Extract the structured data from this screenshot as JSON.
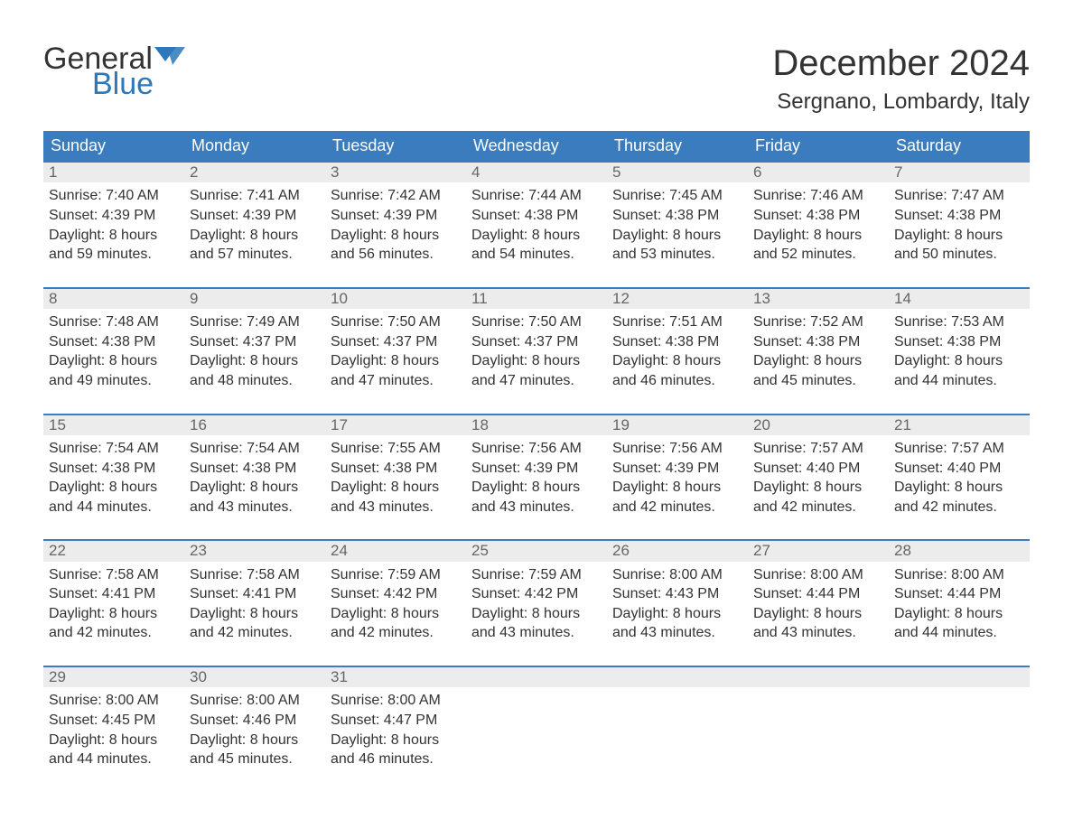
{
  "brand": {
    "word1": "General",
    "word2": "Blue",
    "word1_color": "#333333",
    "word2_color": "#2e77b8",
    "flag_color": "#2e77b8"
  },
  "title": "December 2024",
  "location": "Sergnano, Lombardy, Italy",
  "colors": {
    "header_bg": "#3a7cbd",
    "header_text": "#ffffff",
    "daynum_bg": "#ececec",
    "daynum_text": "#666666",
    "cell_border": "#3a7cbd",
    "body_text": "#333333",
    "page_bg": "#ffffff"
  },
  "typography": {
    "title_fontsize": 40,
    "location_fontsize": 24,
    "header_fontsize": 18,
    "daynum_fontsize": 17,
    "body_fontsize": 16,
    "font_family": "Arial"
  },
  "day_headers": [
    "Sunday",
    "Monday",
    "Tuesday",
    "Wednesday",
    "Thursday",
    "Friday",
    "Saturday"
  ],
  "weeks": [
    [
      {
        "num": "1",
        "sunrise": "Sunrise: 7:40 AM",
        "sunset": "Sunset: 4:39 PM",
        "dl1": "Daylight: 8 hours",
        "dl2": "and 59 minutes."
      },
      {
        "num": "2",
        "sunrise": "Sunrise: 7:41 AM",
        "sunset": "Sunset: 4:39 PM",
        "dl1": "Daylight: 8 hours",
        "dl2": "and 57 minutes."
      },
      {
        "num": "3",
        "sunrise": "Sunrise: 7:42 AM",
        "sunset": "Sunset: 4:39 PM",
        "dl1": "Daylight: 8 hours",
        "dl2": "and 56 minutes."
      },
      {
        "num": "4",
        "sunrise": "Sunrise: 7:44 AM",
        "sunset": "Sunset: 4:38 PM",
        "dl1": "Daylight: 8 hours",
        "dl2": "and 54 minutes."
      },
      {
        "num": "5",
        "sunrise": "Sunrise: 7:45 AM",
        "sunset": "Sunset: 4:38 PM",
        "dl1": "Daylight: 8 hours",
        "dl2": "and 53 minutes."
      },
      {
        "num": "6",
        "sunrise": "Sunrise: 7:46 AM",
        "sunset": "Sunset: 4:38 PM",
        "dl1": "Daylight: 8 hours",
        "dl2": "and 52 minutes."
      },
      {
        "num": "7",
        "sunrise": "Sunrise: 7:47 AM",
        "sunset": "Sunset: 4:38 PM",
        "dl1": "Daylight: 8 hours",
        "dl2": "and 50 minutes."
      }
    ],
    [
      {
        "num": "8",
        "sunrise": "Sunrise: 7:48 AM",
        "sunset": "Sunset: 4:38 PM",
        "dl1": "Daylight: 8 hours",
        "dl2": "and 49 minutes."
      },
      {
        "num": "9",
        "sunrise": "Sunrise: 7:49 AM",
        "sunset": "Sunset: 4:37 PM",
        "dl1": "Daylight: 8 hours",
        "dl2": "and 48 minutes."
      },
      {
        "num": "10",
        "sunrise": "Sunrise: 7:50 AM",
        "sunset": "Sunset: 4:37 PM",
        "dl1": "Daylight: 8 hours",
        "dl2": "and 47 minutes."
      },
      {
        "num": "11",
        "sunrise": "Sunrise: 7:50 AM",
        "sunset": "Sunset: 4:37 PM",
        "dl1": "Daylight: 8 hours",
        "dl2": "and 47 minutes."
      },
      {
        "num": "12",
        "sunrise": "Sunrise: 7:51 AM",
        "sunset": "Sunset: 4:38 PM",
        "dl1": "Daylight: 8 hours",
        "dl2": "and 46 minutes."
      },
      {
        "num": "13",
        "sunrise": "Sunrise: 7:52 AM",
        "sunset": "Sunset: 4:38 PM",
        "dl1": "Daylight: 8 hours",
        "dl2": "and 45 minutes."
      },
      {
        "num": "14",
        "sunrise": "Sunrise: 7:53 AM",
        "sunset": "Sunset: 4:38 PM",
        "dl1": "Daylight: 8 hours",
        "dl2": "and 44 minutes."
      }
    ],
    [
      {
        "num": "15",
        "sunrise": "Sunrise: 7:54 AM",
        "sunset": "Sunset: 4:38 PM",
        "dl1": "Daylight: 8 hours",
        "dl2": "and 44 minutes."
      },
      {
        "num": "16",
        "sunrise": "Sunrise: 7:54 AM",
        "sunset": "Sunset: 4:38 PM",
        "dl1": "Daylight: 8 hours",
        "dl2": "and 43 minutes."
      },
      {
        "num": "17",
        "sunrise": "Sunrise: 7:55 AM",
        "sunset": "Sunset: 4:38 PM",
        "dl1": "Daylight: 8 hours",
        "dl2": "and 43 minutes."
      },
      {
        "num": "18",
        "sunrise": "Sunrise: 7:56 AM",
        "sunset": "Sunset: 4:39 PM",
        "dl1": "Daylight: 8 hours",
        "dl2": "and 43 minutes."
      },
      {
        "num": "19",
        "sunrise": "Sunrise: 7:56 AM",
        "sunset": "Sunset: 4:39 PM",
        "dl1": "Daylight: 8 hours",
        "dl2": "and 42 minutes."
      },
      {
        "num": "20",
        "sunrise": "Sunrise: 7:57 AM",
        "sunset": "Sunset: 4:40 PM",
        "dl1": "Daylight: 8 hours",
        "dl2": "and 42 minutes."
      },
      {
        "num": "21",
        "sunrise": "Sunrise: 7:57 AM",
        "sunset": "Sunset: 4:40 PM",
        "dl1": "Daylight: 8 hours",
        "dl2": "and 42 minutes."
      }
    ],
    [
      {
        "num": "22",
        "sunrise": "Sunrise: 7:58 AM",
        "sunset": "Sunset: 4:41 PM",
        "dl1": "Daylight: 8 hours",
        "dl2": "and 42 minutes."
      },
      {
        "num": "23",
        "sunrise": "Sunrise: 7:58 AM",
        "sunset": "Sunset: 4:41 PM",
        "dl1": "Daylight: 8 hours",
        "dl2": "and 42 minutes."
      },
      {
        "num": "24",
        "sunrise": "Sunrise: 7:59 AM",
        "sunset": "Sunset: 4:42 PM",
        "dl1": "Daylight: 8 hours",
        "dl2": "and 42 minutes."
      },
      {
        "num": "25",
        "sunrise": "Sunrise: 7:59 AM",
        "sunset": "Sunset: 4:42 PM",
        "dl1": "Daylight: 8 hours",
        "dl2": "and 43 minutes."
      },
      {
        "num": "26",
        "sunrise": "Sunrise: 8:00 AM",
        "sunset": "Sunset: 4:43 PM",
        "dl1": "Daylight: 8 hours",
        "dl2": "and 43 minutes."
      },
      {
        "num": "27",
        "sunrise": "Sunrise: 8:00 AM",
        "sunset": "Sunset: 4:44 PM",
        "dl1": "Daylight: 8 hours",
        "dl2": "and 43 minutes."
      },
      {
        "num": "28",
        "sunrise": "Sunrise: 8:00 AM",
        "sunset": "Sunset: 4:44 PM",
        "dl1": "Daylight: 8 hours",
        "dl2": "and 44 minutes."
      }
    ],
    [
      {
        "num": "29",
        "sunrise": "Sunrise: 8:00 AM",
        "sunset": "Sunset: 4:45 PM",
        "dl1": "Daylight: 8 hours",
        "dl2": "and 44 minutes."
      },
      {
        "num": "30",
        "sunrise": "Sunrise: 8:00 AM",
        "sunset": "Sunset: 4:46 PM",
        "dl1": "Daylight: 8 hours",
        "dl2": "and 45 minutes."
      },
      {
        "num": "31",
        "sunrise": "Sunrise: 8:00 AM",
        "sunset": "Sunset: 4:47 PM",
        "dl1": "Daylight: 8 hours",
        "dl2": "and 46 minutes."
      },
      null,
      null,
      null,
      null
    ]
  ]
}
